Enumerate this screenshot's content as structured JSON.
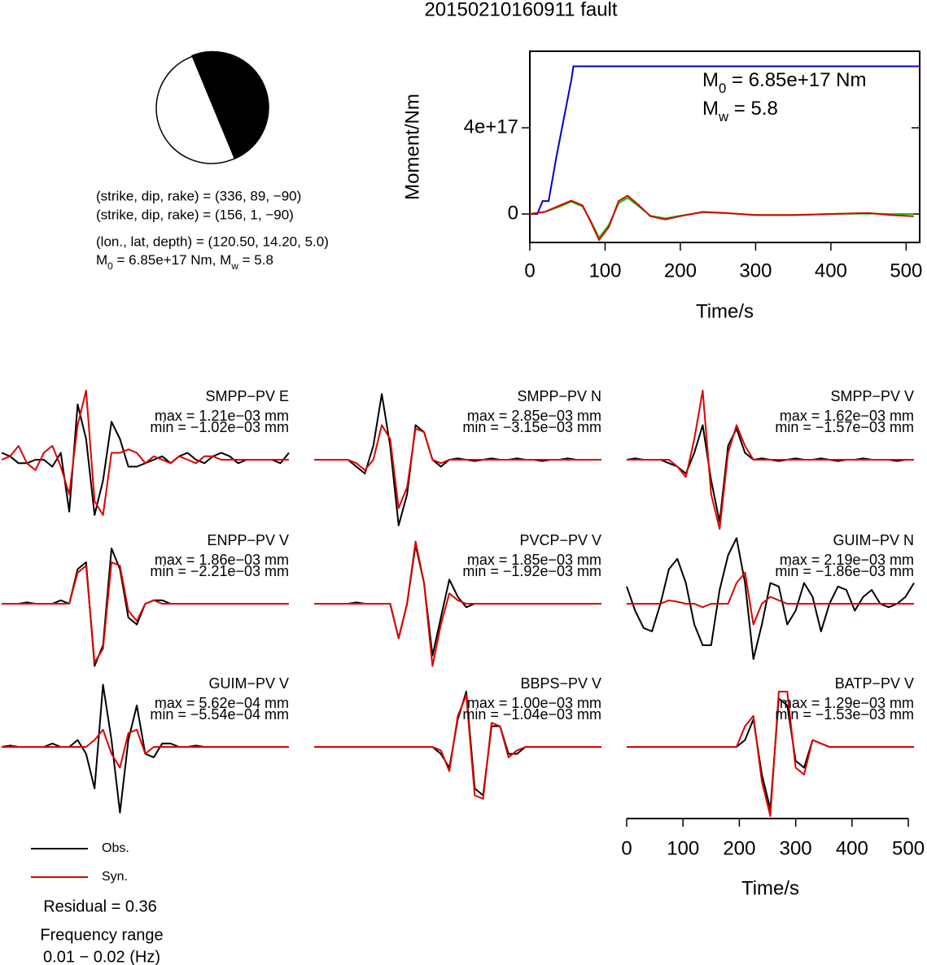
{
  "title": "20150210160911 fault",
  "focal": {
    "lines": [
      "(strike, dip, rake) = (336, 89, −90)",
      "(strike, dip, rake) = (156, 1, −90)",
      "(lon., lat, depth) = (120.50, 14.20, 5.0)"
    ],
    "moment_line": [
      "M",
      "0",
      " = 6.85e+17 Nm, M",
      "w",
      " = 5.8"
    ]
  },
  "residual": "Residual = 0.36",
  "frequency_label": "Frequency range",
  "frequency_range": "0.01 − 0.02 (Hz)",
  "chart_data": [
    {
      "type": "line",
      "ylabel": "Moment/Nm",
      "xlabel": "Time/s",
      "xlim": [
        0,
        518
      ],
      "ylim": [
        -1.32e+17,
        7.55e+17
      ],
      "xticks": [
        0,
        100,
        200,
        300,
        400,
        500
      ],
      "yticks": [
        0,
        {
          "value": 4e+17,
          "label": "4e+17"
        }
      ],
      "annotations": [
        [
          "M",
          "0",
          " = 6.85e+17 Nm"
        ],
        [
          "M",
          "w",
          " = 5.8"
        ]
      ],
      "series": [
        {
          "color": "#0000cc",
          "x": [
            0,
            10,
            17,
            25,
            35,
            45,
            55,
            58,
            518
          ],
          "values": [
            0,
            0,
            6e+16,
            6e+16,
            2.6e+17,
            4.4e+17,
            6.2e+17,
            6.85e+17,
            6.85e+17
          ]
        },
        {
          "color": "#00cc00",
          "x": [
            0,
            20,
            40,
            55,
            70,
            80,
            92,
            105,
            118,
            130,
            145,
            160,
            180,
            200,
            230,
            260,
            300,
            350,
            400,
            450,
            480,
            510
          ],
          "values": [
            0,
            1e+16,
            3.5e+16,
            5.8e+16,
            3.5e+16,
            -2.5e+16,
            -1.1e+17,
            -5e+16,
            5e+16,
            7.5e+16,
            3.5e+16,
            -8000000000000000.0,
            -2e+16,
            -8000000000000000.0,
            8000000000000000.0,
            4000000000000000.0,
            -4000000000000000.0,
            -4000000000000000.0,
            0,
            2000000000000000.0,
            0,
            0
          ]
        },
        {
          "color": "#dd0000",
          "x": [
            0,
            20,
            40,
            55,
            70,
            80,
            92,
            105,
            118,
            130,
            145,
            160,
            180,
            200,
            230,
            260,
            300,
            350,
            400,
            450,
            480,
            510
          ],
          "values": [
            0,
            1e+16,
            4e+16,
            6.2e+16,
            4e+16,
            -3e+16,
            -1.2e+17,
            -6e+16,
            6e+16,
            8.5e+16,
            4e+16,
            -1e+16,
            -2.5e+16,
            -1e+16,
            1e+16,
            5000000000000000.0,
            -5000000000000000.0,
            -5000000000000000.0,
            0,
            5000000000000000.0,
            -5000000000000000.0,
            -1e+16
          ]
        }
      ]
    },
    {
      "type": "waveform",
      "xlabel": "Time/s",
      "xlim": [
        0,
        510
      ],
      "xticks": [
        0,
        100,
        200,
        300,
        400,
        500
      ],
      "x": [
        0,
        15,
        30,
        45,
        60,
        75,
        90,
        105,
        120,
        135,
        150,
        165,
        180,
        195,
        210,
        225,
        240,
        255,
        270,
        285,
        300,
        315,
        330,
        345,
        360,
        375,
        390,
        405,
        420,
        435,
        450,
        465,
        480,
        495,
        510
      ],
      "legend": [
        {
          "label": "Obs.",
          "color": "#000000"
        },
        {
          "label": "Syn.",
          "color": "#dd0000"
        }
      ],
      "panels": [
        {
          "title": "SMPP−PV E",
          "max": "max = 1.21e−03 mm",
          "min": "min = −1.02e−03 mm",
          "obs": [
            0.1,
            0.05,
            -0.05,
            -0.05,
            0,
            0,
            -0.1,
            0.1,
            -0.75,
            0.8,
            0.3,
            -0.8,
            -0.3,
            0.55,
            0.3,
            -0.1,
            -0.1,
            -0.05,
            0,
            0.05,
            -0.05,
            0.05,
            0.1,
            0,
            -0.05,
            0.05,
            0.1,
            0.05,
            -0.05,
            0,
            0,
            0,
            0,
            -0.05,
            0.1
          ],
          "syn": [
            0,
            0.05,
            0.2,
            -0.05,
            -0.15,
            0.1,
            0.2,
            -0.1,
            -0.5,
            0.5,
            1.0,
            -0.6,
            -0.8,
            0.1,
            0.1,
            0.15,
            0.1,
            -0.05,
            0.05,
            0,
            -0.05,
            0.05,
            0,
            -0.05,
            0.05,
            0.05,
            0,
            0,
            0,
            0,
            0,
            0,
            0,
            0,
            0
          ]
        },
        {
          "title": "SMPP−PV N",
          "max": "max = 2.85e−03 mm",
          "min": "min = −3.15e−03 mm",
          "obs": [
            0,
            0,
            0,
            0,
            0,
            -0.1,
            -0.2,
            0.2,
            0.95,
            0.2,
            -0.95,
            -0.5,
            0.5,
            0.4,
            0,
            -0.1,
            0,
            0.02,
            0,
            -0.02,
            0,
            0.02,
            0,
            0,
            0.02,
            0,
            0,
            -0.02,
            0,
            0,
            0.02,
            0,
            0,
            0,
            0
          ],
          "syn": [
            0,
            0,
            0,
            0,
            0,
            -0.05,
            -0.15,
            0,
            0.5,
            0.3,
            -0.7,
            -0.4,
            0.45,
            0.4,
            0,
            -0.05,
            0,
            0,
            0,
            0,
            0,
            0,
            0,
            0,
            0,
            0,
            0,
            0,
            0,
            0,
            0,
            0,
            0,
            0,
            0
          ]
        },
        {
          "title": "SMPP−PV V",
          "max": "max = 1.62e−03 mm",
          "min": "min = −1.57e−03 mm",
          "obs": [
            0,
            0.02,
            0,
            0,
            0,
            -0.05,
            -0.1,
            -0.2,
            0.1,
            0.5,
            -0.3,
            -0.9,
            0.2,
            0.45,
            0.1,
            0,
            0.02,
            0,
            -0.02,
            0,
            0.02,
            0,
            0,
            0.02,
            0,
            -0.02,
            0,
            0,
            0.02,
            0,
            0,
            0,
            -0.02,
            0,
            0
          ],
          "syn": [
            0,
            0,
            0,
            0,
            0,
            0,
            -0.1,
            -0.25,
            0.3,
            1.0,
            -0.5,
            -1.0,
            0.1,
            0.5,
            0.2,
            0,
            0,
            0,
            0,
            0,
            0,
            0,
            0,
            0,
            0,
            0,
            0,
            0,
            0,
            0,
            0,
            0,
            0,
            0,
            0
          ]
        },
        {
          "title": "ENPP−PV V",
          "max": "max = 1.86e−03 mm",
          "min": "min = −2.21e−03 mm",
          "obs": [
            0,
            0,
            0,
            0.02,
            0,
            0,
            0,
            0.05,
            0,
            0.5,
            0.6,
            -0.9,
            -0.6,
            0.8,
            0.5,
            -0.2,
            -0.3,
            0,
            0.05,
            0.05,
            0,
            0,
            0,
            0,
            0,
            0,
            0,
            0,
            0,
            0,
            0,
            0,
            0,
            0,
            0
          ],
          "syn": [
            0,
            0,
            0,
            0,
            0,
            0,
            0,
            0,
            0,
            0.45,
            0.55,
            -0.85,
            -0.65,
            0.6,
            0.55,
            -0.1,
            -0.25,
            0,
            0.05,
            0,
            0,
            0,
            0,
            0,
            0,
            0,
            0,
            0,
            0,
            0,
            0,
            0,
            0,
            0,
            0
          ]
        },
        {
          "title": "PVCP−PV V",
          "max": "max = 1.85e−03 mm",
          "min": "min = −1.92e−03 mm",
          "obs": [
            0,
            0,
            0,
            0,
            0,
            0.02,
            0,
            0,
            0,
            0,
            -0.5,
            0,
            0.85,
            0.3,
            -0.75,
            -0.2,
            0.35,
            0.1,
            -0.05,
            0,
            0,
            0,
            0,
            0,
            0,
            0,
            0,
            0,
            0,
            0,
            0,
            0,
            0,
            0,
            0
          ],
          "syn": [
            0,
            0,
            0,
            0,
            0,
            0,
            0,
            0,
            0,
            0,
            -0.5,
            0,
            0.9,
            0.3,
            -0.9,
            -0.3,
            0.15,
            0.05,
            0,
            0,
            0,
            0,
            0,
            0,
            0,
            0,
            0,
            0,
            0,
            0,
            0,
            0,
            0,
            0,
            0
          ]
        },
        {
          "title": "GUIM−PV N",
          "max": "max = 2.19e−03 mm",
          "min": "min = −1.86e−03 mm",
          "obs": [
            0.25,
            -0.1,
            -0.35,
            -0.4,
            0,
            0.5,
            0.65,
            0.3,
            -0.3,
            -0.6,
            -0.6,
            0.2,
            0.7,
            0.95,
            0.3,
            -0.8,
            -0.3,
            0.3,
            0.25,
            -0.3,
            -0.1,
            0.3,
            0.1,
            -0.4,
            0,
            0.25,
            0.2,
            -0.1,
            0.1,
            0.2,
            0,
            -0.05,
            0,
            0.1,
            0.3
          ],
          "syn": [
            0,
            0,
            0,
            0,
            0,
            0.05,
            0.03,
            0,
            0,
            -0.05,
            0,
            0,
            0,
            0.3,
            0.45,
            -0.3,
            0,
            0.1,
            0.05,
            0,
            0,
            0,
            0,
            0,
            0,
            0,
            0,
            0,
            0,
            0,
            0,
            0,
            0,
            0,
            0
          ]
        },
        {
          "title": "GUIM−PV V",
          "max": "max = 5.62e−04 mm",
          "min": "min = −5.54e−04 mm",
          "obs": [
            0,
            0.02,
            0,
            0,
            0,
            0,
            0.05,
            0,
            0,
            0.1,
            -0.1,
            -0.6,
            0.9,
            0.1,
            -0.95,
            0.1,
            0.6,
            -0.1,
            -0.15,
            0.05,
            0.05,
            0,
            0,
            0.02,
            0,
            0,
            0,
            0,
            0,
            0,
            0,
            0,
            0,
            0,
            0
          ],
          "syn": [
            0,
            0,
            0,
            0,
            0,
            0,
            0,
            0,
            0,
            0,
            0,
            0.1,
            0.25,
            -0.1,
            -0.3,
            0.2,
            0.25,
            -0.1,
            0,
            0,
            0,
            0,
            0,
            0,
            0,
            0,
            0,
            0,
            0,
            0,
            0,
            0,
            0,
            0,
            0
          ]
        },
        {
          "title": "BBPS−PV V",
          "max": "max = 1.00e−03 mm",
          "min": "min = −1.04e−03 mm",
          "obs": [
            0,
            0,
            0,
            0,
            0,
            0,
            0,
            0,
            0,
            0,
            0,
            0,
            0,
            0,
            0,
            -0.1,
            -0.3,
            0.4,
            0.8,
            -0.6,
            -0.7,
            0.3,
            0.3,
            -0.1,
            -0.1,
            0,
            0,
            0,
            0,
            0,
            0,
            0,
            0,
            0,
            0
          ],
          "syn": [
            0,
            0,
            0,
            0,
            0,
            0,
            0,
            0,
            0,
            0,
            0,
            0,
            0,
            0,
            0,
            -0.05,
            -0.35,
            0.45,
            0.75,
            -0.7,
            -0.75,
            0.35,
            0.3,
            -0.15,
            -0.05,
            0,
            0,
            0,
            0,
            0,
            0,
            0,
            0,
            0,
            0
          ]
        },
        {
          "title": "BATP−PV V",
          "max": "max = 1.29e−03 mm",
          "min": "min = −1.53e−03 mm",
          "obs": [
            0,
            0,
            0,
            0,
            0,
            0,
            0,
            0,
            0,
            0,
            0,
            0,
            0,
            0,
            0.1,
            0.4,
            -0.4,
            -0.9,
            0.7,
            0.6,
            -0.2,
            -0.3,
            0.1,
            0.05,
            0,
            0,
            0,
            0,
            0,
            0,
            0,
            0,
            0,
            0,
            0
          ],
          "syn": [
            0,
            0,
            0,
            0,
            0,
            0,
            0,
            0,
            0,
            0,
            0,
            0,
            0,
            0,
            0.3,
            0.45,
            -0.5,
            -1.0,
            0.8,
            0.8,
            -0.3,
            -0.4,
            0.1,
            0.05,
            0,
            0,
            0,
            0,
            0,
            0,
            0,
            0,
            0,
            0,
            0
          ]
        }
      ]
    }
  ]
}
